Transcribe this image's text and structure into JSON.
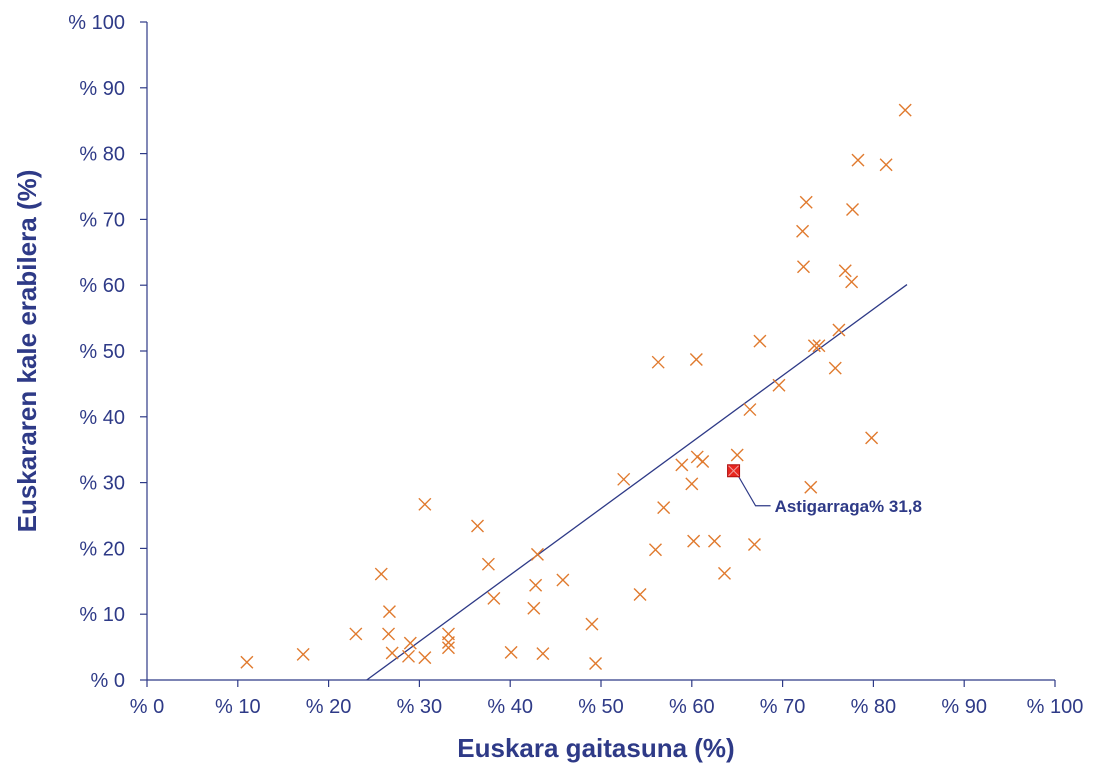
{
  "chart_data": {
    "type": "scatter",
    "title": "",
    "xlabel": "Euskara gaitasuna (%)",
    "ylabel": "Euskararen kale erabilera (%)",
    "xlim": [
      0,
      100
    ],
    "ylim": [
      0,
      100
    ],
    "x_ticks": [
      0,
      10,
      20,
      30,
      40,
      50,
      60,
      70,
      80,
      90,
      100
    ],
    "y_ticks": [
      0,
      10,
      20,
      30,
      40,
      50,
      60,
      70,
      80,
      90,
      100
    ],
    "x_tick_labels": [
      "% 0",
      "% 10",
      "% 20",
      "% 30",
      "% 40",
      "% 50",
      "% 60",
      "% 70",
      "% 80",
      "% 90",
      "% 100"
    ],
    "y_tick_labels": [
      "% 0",
      "% 10",
      "% 20",
      "% 30",
      "% 40",
      "% 50",
      "% 60",
      "% 70",
      "% 80",
      "% 90",
      "% 100"
    ],
    "grid": false,
    "legend": "none",
    "colors": {
      "axis": "#2E3A87",
      "marker": "#E07A2E",
      "highlight": "#E8261F",
      "trend": "#2E3A87"
    },
    "series": [
      {
        "marker": "x",
        "points": [
          [
            11.0,
            2.7
          ],
          [
            17.2,
            3.9
          ],
          [
            23.0,
            7.0
          ],
          [
            25.8,
            16.1
          ],
          [
            26.7,
            10.4
          ],
          [
            26.6,
            7.0
          ],
          [
            27.0,
            4.1
          ],
          [
            29.0,
            5.6
          ],
          [
            28.8,
            3.6
          ],
          [
            30.6,
            26.7
          ],
          [
            30.6,
            3.4
          ],
          [
            33.2,
            7.0
          ],
          [
            33.2,
            4.9
          ],
          [
            33.2,
            5.7
          ],
          [
            36.4,
            23.4
          ],
          [
            37.6,
            17.6
          ],
          [
            38.2,
            12.4
          ],
          [
            40.1,
            4.2
          ],
          [
            43.0,
            19.1
          ],
          [
            42.8,
            14.4
          ],
          [
            42.6,
            10.9
          ],
          [
            43.6,
            4.0
          ],
          [
            45.8,
            15.2
          ],
          [
            49.0,
            8.5
          ],
          [
            49.4,
            2.5
          ],
          [
            52.5,
            30.5
          ],
          [
            54.3,
            13.0
          ],
          [
            56.3,
            48.3
          ],
          [
            56.0,
            19.8
          ],
          [
            56.9,
            26.2
          ],
          [
            58.9,
            32.7
          ],
          [
            60.0,
            29.8
          ],
          [
            60.2,
            21.1
          ],
          [
            60.5,
            48.7
          ],
          [
            60.6,
            33.9
          ],
          [
            61.2,
            33.2
          ],
          [
            62.5,
            21.1
          ],
          [
            63.6,
            16.2
          ],
          [
            65.0,
            34.2
          ],
          [
            66.4,
            41.1
          ],
          [
            66.9,
            20.6
          ],
          [
            67.5,
            51.5
          ],
          [
            69.6,
            44.8
          ],
          [
            72.2,
            68.2
          ],
          [
            72.3,
            62.8
          ],
          [
            72.6,
            72.6
          ],
          [
            73.1,
            29.3
          ],
          [
            73.5,
            50.8
          ],
          [
            74.0,
            50.8
          ],
          [
            75.8,
            47.4
          ],
          [
            76.2,
            53.2
          ],
          [
            76.9,
            62.2
          ],
          [
            77.6,
            60.5
          ],
          [
            77.7,
            71.5
          ],
          [
            78.3,
            79.0
          ],
          [
            79.8,
            36.8
          ],
          [
            81.4,
            78.3
          ],
          [
            83.5,
            86.6
          ]
        ]
      }
    ],
    "highlight": {
      "x": 64.6,
      "y": 31.8,
      "label": "Astigarraga% 31,8"
    },
    "trendline": {
      "x1": 24.2,
      "y1": 0,
      "x2": 83.7,
      "y2": 60.1
    }
  }
}
